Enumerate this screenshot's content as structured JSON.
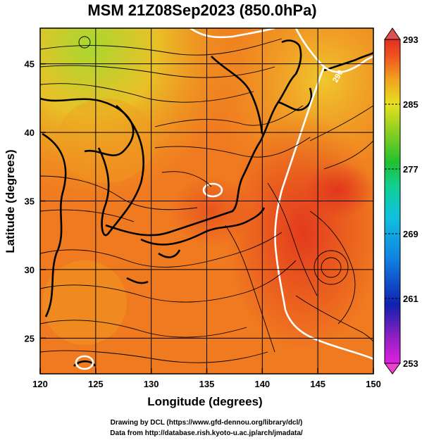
{
  "chart_data": {
    "type": "heatmap",
    "title": "MSM 21Z08Sep2023 (850.0hPa)",
    "xlabel": "Longitude (degrees)",
    "ylabel": "Latitude  (degrees)",
    "xlim": [
      120,
      150
    ],
    "ylim": [
      22.4,
      47.6
    ],
    "x_ticks": [
      120,
      125,
      130,
      135,
      140,
      145,
      150
    ],
    "y_ticks": [
      25,
      30,
      35,
      40,
      45
    ],
    "grid": true,
    "colorbar": {
      "min": 253,
      "max": 293,
      "tick_values": [
        253,
        261,
        269,
        277,
        285,
        293
      ],
      "colors": [
        "#e020e0",
        "#8020c0",
        "#1030c0",
        "#1080e0",
        "#10c0e0",
        "#10d0a0",
        "#20c040",
        "#80d020",
        "#e0e020",
        "#f0b020",
        "#f07020",
        "#e03020"
      ]
    },
    "contour_label": "290",
    "footer": [
      "Drawing by DCL (https://www.gfd-dennou.org/library/dcl/)",
      "Data from http://database.rish.kyoto-u.ac.jp/arch/jmadata/"
    ]
  }
}
